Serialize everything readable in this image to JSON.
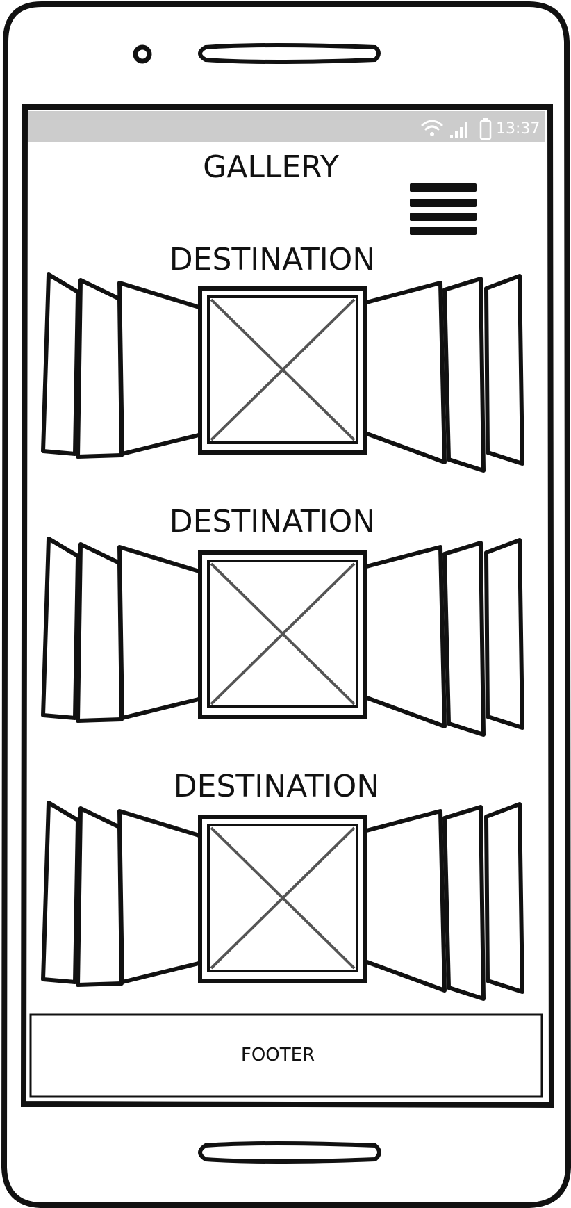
{
  "status_bar": {
    "time": "13:37",
    "icons": [
      "wifi-icon",
      "signal-icon",
      "battery-icon"
    ]
  },
  "header": {
    "title": "GALLERY",
    "menu_icon": "hamburger-menu-icon"
  },
  "galleries": [
    {
      "label": "DESTINATION",
      "image_icon": "image-placeholder-icon"
    },
    {
      "label": "DESTINATION",
      "image_icon": "image-placeholder-icon"
    },
    {
      "label": "DESTINATION",
      "image_icon": "image-placeholder-icon"
    }
  ],
  "footer": {
    "label": "FOOTER"
  },
  "colors": {
    "status_bar_bg": "#cccccc",
    "ink": "#111111",
    "placeholder_x": "#555555",
    "background": "#ffffff"
  }
}
